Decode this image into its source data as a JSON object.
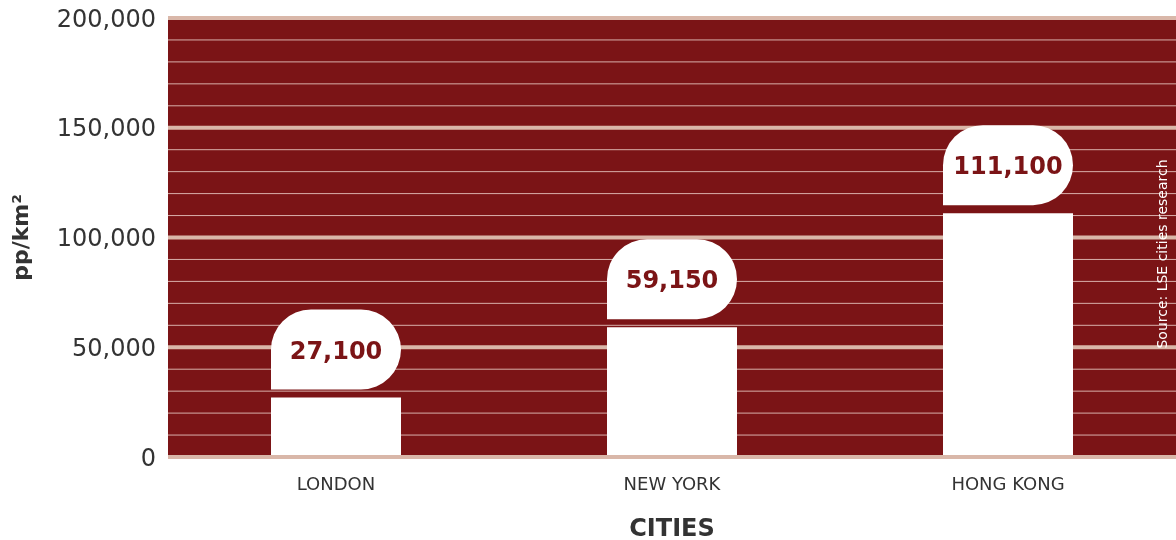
{
  "chart_data": {
    "type": "bar",
    "xlabel": "CITIES",
    "ylabel": "pp/km²",
    "categories": [
      "LONDON",
      "NEW YORK",
      "HONG KONG"
    ],
    "values": [
      27100,
      59150,
      111100
    ],
    "color": "#ffffff",
    "value_labels": [
      "27,100",
      "59,150",
      "111,100"
    ],
    "ylim": [
      0,
      200000
    ],
    "yticks": [
      {
        "value": 0,
        "label": "0"
      },
      {
        "value": 10000,
        "label": null
      },
      {
        "value": 20000,
        "label": null
      },
      {
        "value": 30000,
        "label": null
      },
      {
        "value": 40000,
        "label": null
      },
      {
        "value": 50000,
        "label": "50,000"
      },
      {
        "value": 60000,
        "label": null
      },
      {
        "value": 70000,
        "label": null
      },
      {
        "value": 80000,
        "label": null
      },
      {
        "value": 90000,
        "label": null
      },
      {
        "value": 100000,
        "label": "100,000"
      },
      {
        "value": 110000,
        "label": null
      },
      {
        "value": 120000,
        "label": null
      },
      {
        "value": 130000,
        "label": null
      },
      {
        "value": 140000,
        "label": null
      },
      {
        "value": 150000,
        "label": "150,000"
      },
      {
        "value": 160000,
        "label": null
      },
      {
        "value": 170000,
        "label": null
      },
      {
        "value": 180000,
        "label": null
      },
      {
        "value": 190000,
        "label": null
      },
      {
        "value": 200000,
        "label": "200,000"
      }
    ],
    "grid": "y",
    "annotations": [
      "Source: LSE cities research"
    ]
  }
}
